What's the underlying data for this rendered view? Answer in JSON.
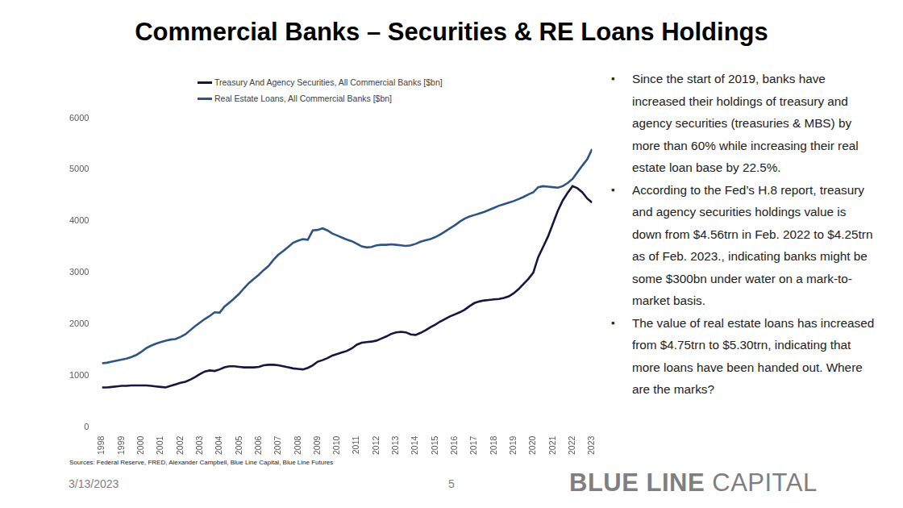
{
  "chart_data": {
    "type": "line",
    "title": "Commercial Banks – Securities & RE Loans Holdings",
    "categories": [
      "1998",
      null,
      null,
      null,
      "1999",
      null,
      null,
      null,
      "2000",
      null,
      null,
      null,
      "2001",
      null,
      null,
      null,
      "2002",
      null,
      null,
      null,
      "2003",
      null,
      null,
      null,
      "2004",
      null,
      null,
      null,
      "2005",
      null,
      null,
      null,
      "2006",
      null,
      null,
      null,
      "2007",
      null,
      null,
      null,
      "2008",
      null,
      null,
      null,
      "2009",
      null,
      null,
      null,
      "2010",
      null,
      null,
      null,
      "2011",
      null,
      null,
      null,
      "2012",
      null,
      null,
      null,
      "2013",
      null,
      null,
      null,
      "2014",
      null,
      null,
      null,
      "2015",
      null,
      null,
      null,
      "2016",
      null,
      null,
      null,
      "2017",
      null,
      null,
      null,
      "2018",
      null,
      null,
      null,
      "2019",
      null,
      null,
      null,
      "2020",
      null,
      null,
      null,
      "2021",
      null,
      null,
      null,
      "2022",
      null,
      null,
      null,
      "2023"
    ],
    "series": [
      {
        "name": "Treasury And Agency Securities, All Commercial Banks [$bn]",
        "color": "#161640",
        "values": [
          770,
          770,
          780,
          790,
          800,
          800,
          810,
          810,
          810,
          810,
          800,
          790,
          780,
          770,
          800,
          830,
          860,
          880,
          920,
          970,
          1030,
          1080,
          1100,
          1090,
          1120,
          1160,
          1180,
          1180,
          1170,
          1160,
          1160,
          1160,
          1170,
          1200,
          1210,
          1210,
          1200,
          1180,
          1160,
          1140,
          1130,
          1120,
          1150,
          1200,
          1270,
          1300,
          1340,
          1390,
          1420,
          1450,
          1480,
          1530,
          1600,
          1640,
          1650,
          1660,
          1680,
          1720,
          1760,
          1810,
          1840,
          1850,
          1840,
          1800,
          1790,
          1830,
          1880,
          1940,
          1990,
          2050,
          2100,
          2150,
          2190,
          2230,
          2280,
          2350,
          2410,
          2440,
          2460,
          2470,
          2480,
          2490,
          2510,
          2540,
          2600,
          2680,
          2780,
          2880,
          3000,
          3300,
          3500,
          3700,
          3950,
          4200,
          4400,
          4550,
          4680,
          4640,
          4560,
          4440,
          4360
        ]
      },
      {
        "name": "Real Estate Loans, All Commercial Banks [$bn]",
        "color": "#2E5483",
        "values": [
          1240,
          1250,
          1270,
          1290,
          1310,
          1330,
          1360,
          1400,
          1460,
          1530,
          1580,
          1620,
          1650,
          1680,
          1700,
          1710,
          1750,
          1800,
          1880,
          1960,
          2030,
          2100,
          2160,
          2230,
          2220,
          2340,
          2420,
          2500,
          2590,
          2700,
          2800,
          2880,
          2960,
          3050,
          3130,
          3250,
          3350,
          3420,
          3500,
          3580,
          3620,
          3650,
          3640,
          3820,
          3830,
          3860,
          3820,
          3760,
          3720,
          3680,
          3640,
          3610,
          3560,
          3510,
          3490,
          3500,
          3530,
          3540,
          3540,
          3550,
          3540,
          3530,
          3520,
          3530,
          3560,
          3600,
          3630,
          3650,
          3690,
          3740,
          3800,
          3860,
          3920,
          3990,
          4050,
          4090,
          4120,
          4150,
          4180,
          4220,
          4260,
          4300,
          4330,
          4360,
          4390,
          4430,
          4470,
          4520,
          4560,
          4660,
          4680,
          4670,
          4660,
          4650,
          4680,
          4740,
          4820,
          4950,
          5080,
          5200,
          5400
        ]
      }
    ],
    "ylim": [
      0,
      6000
    ],
    "yticks": [
      0,
      1000,
      2000,
      3000,
      4000,
      5000,
      6000
    ],
    "grid": false,
    "legend": "top"
  },
  "slide": {
    "bullets": [
      "Since the start of 2019, banks have increased their holdings of treasury and agency securities (treasuries & MBS) by more than 60% while increasing their real estate loan base by 22.5%.",
      "According to the Fed’s H.8 report, treasury and agency securities holdings value is down from $4.56trn in Feb. 2022 to $4.25trn as of Feb. 2023., indicating banks might be some $300bn under water on a mark-to-market basis.",
      "The value of real estate loans has increased from $4.75trn to $5.30trn, indicating that more loans have been handed out. Where are the marks?"
    ],
    "sources": "Sources: Federal Reserve, FRED, Alexander Campbell, Blue Line Capital, Blue Line Futures",
    "date": "3/13/2023",
    "page": "5",
    "logo": "BLUE LINE CAPITAL"
  }
}
